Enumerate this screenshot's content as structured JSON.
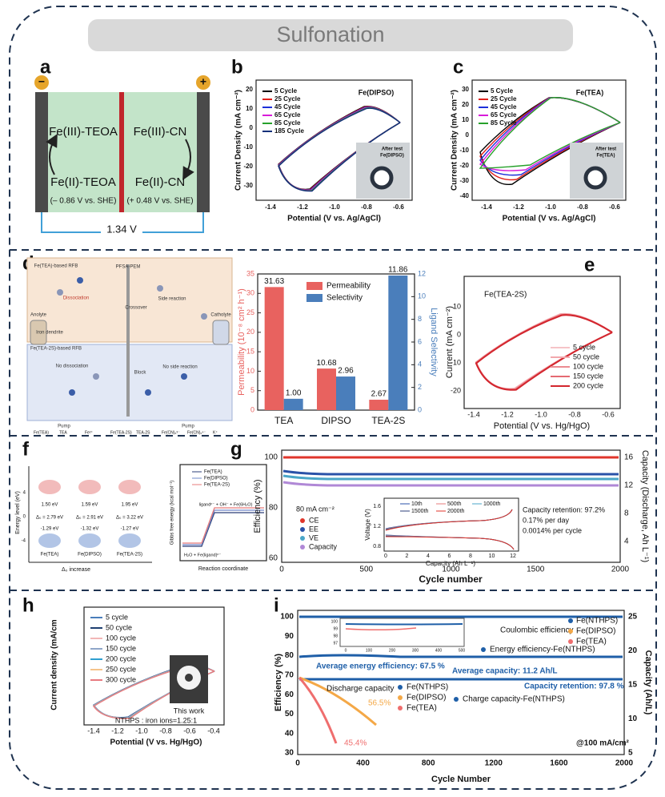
{
  "title": "Sulfonation",
  "panel_labels": [
    "a",
    "b",
    "c",
    "d",
    "e",
    "f",
    "g",
    "h",
    "i"
  ],
  "a": {
    "minus": "−",
    "plus": "+",
    "left_top": "Fe(III)-TEOA",
    "left_bottom": "Fe(II)-TEOA",
    "left_potential": "(– 0.86 V vs. SHE)",
    "right_top": "Fe(III)-CN",
    "right_bottom": "Fe(II)-CN",
    "right_potential": "(+ 0.48 V vs. SHE)",
    "voltage": "1.34 V"
  },
  "b": {
    "ylabel": "Current Density (mA cm⁻²)",
    "xlabel": "Potential (V vs. Ag/AgCl)",
    "tag": "Fe(DIPSO)",
    "legend": [
      "5 Cycle",
      "25 Cycle",
      "45 Cycle",
      "65 Cycle",
      "85 Cycle",
      "185 Cycle"
    ],
    "yticks": [
      "20",
      "10",
      "0",
      "-10",
      "-20",
      "-30"
    ],
    "xticks": [
      "-1.4",
      "-1.2",
      "-1.0",
      "-0.8",
      "-0.6"
    ],
    "inset": [
      "After test",
      "Fe(DIPSO)"
    ]
  },
  "c": {
    "ylabel": "Current Density (mA cm⁻²)",
    "xlabel": "Potential (V vs. Ag/AgCl)",
    "tag": "Fe(TEA)",
    "legend": [
      "5 Cycle",
      "25 Cycle",
      "45 Cycle",
      "65 Cycle",
      "85 Cycle"
    ],
    "yticks": [
      "30",
      "20",
      "10",
      "0",
      "-10",
      "-20",
      "-30",
      "-40"
    ],
    "xticks": [
      "-1.4",
      "-1.2",
      "-1.0",
      "-0.8",
      "-0.6"
    ],
    "inset": [
      "After test",
      "Fe(TEA)"
    ]
  },
  "d": {
    "schematic": [
      "Fe(TEA)-based RFB",
      "PFSA-PEM",
      "Dissociation",
      "Crossover",
      "Side reaction",
      "Iron dendrite",
      "Fe(TEA-2S)-based RFB",
      "No dissociation",
      "Block",
      "No side reaction",
      "Anolyte",
      "Catholyte",
      "Pump",
      "Pump"
    ],
    "species": [
      "Fe(TEA)",
      "TEA",
      "Fe²⁺",
      "Fe(TEA-2S)",
      "TEA-2S",
      "Fe(CN)₆³⁻",
      "Fe(CN)₆⁴⁻",
      "K⁺"
    ]
  },
  "e": {
    "tag": "Fe(TEA-2S)",
    "ylabel": "Current (mA cm⁻²)",
    "xlabel": "Potential (V vs. Hg/HgO)",
    "legend": [
      "5 cycle",
      "50 cycle",
      "100 cycle",
      "150 cycle",
      "200 cycle"
    ],
    "yticks": [
      "10",
      "0",
      "-10",
      "-20"
    ],
    "xticks": [
      "-1.4",
      "-1.2",
      "-1.0",
      "-0.8",
      "-0.6"
    ]
  },
  "f": {
    "ylabel": "Energy level (eV)",
    "xlabel": "Δ₀ increase",
    "yticks": [
      "4",
      "0",
      "-4"
    ],
    "molecules": [
      "Fe(TEA)",
      "Fe(DIPSO)",
      "Fe(TEA-2S)"
    ],
    "upper": [
      "1.50 eV",
      "1.59 eV",
      "1.95 eV"
    ],
    "delta": [
      "Δ₀ = 2.79 eV",
      "Δ₀ = 2.91 eV",
      "Δ₀ = 3.22 eV"
    ],
    "lower": [
      "-1.29 eV",
      "-1.32 eV",
      "-1.27 eV"
    ],
    "right_ylabel": "Gibbs free energy (kcal mol⁻¹)",
    "right_xlabel": "Reaction coordinate",
    "legend": [
      "Fe(TEA)",
      "Fe(DIPSO)",
      "Fe(TEA-2S)"
    ],
    "product": "ligandⁿ⁻ + OH⁻ + Fe(6H₂O)",
    "reactant": "H₂O + Fe(ligand)ⁿ⁻"
  },
  "g": {
    "ylabel": "Efficiency (%)",
    "y2label": "Capacity (Discharge, Ah L⁻¹)",
    "xlabel": "Cycle number",
    "yticks": [
      "100",
      "80",
      "60"
    ],
    "y2ticks": [
      "16",
      "12",
      "8",
      "4"
    ],
    "xticks": [
      "0",
      "500",
      "1000",
      "1500",
      "2000"
    ],
    "current": "80 mA cm⁻²",
    "legend": [
      "CE",
      "EE",
      "VE",
      "Capacity"
    ],
    "retention": [
      "Capacity retention: 97.2%",
      "0.17% per day",
      "0.0014% per cycle"
    ],
    "inset": {
      "ylabel": "Voltage (V)",
      "xlabel": "Capacity (Ah L⁻¹)",
      "yticks": [
        "1.6",
        "1.2",
        "0.8"
      ],
      "xticks": [
        "0",
        "2",
        "4",
        "6",
        "8",
        "10",
        "12"
      ],
      "legend": [
        "10th",
        "500th",
        "1000th",
        "1500th",
        "2000th"
      ]
    }
  },
  "h": {
    "ylabel": "Current density (mA/cm",
    "xlabel": "Potential (V vs. Hg/HgO)",
    "xticks": [
      "-1.4",
      "-1.2",
      "-1.0",
      "-0.8",
      "-0.6",
      "-0.4"
    ],
    "legend": [
      "5 cycle",
      "50 cycle",
      "100 cycle",
      "150 cycle",
      "200 cycle",
      "250 cycle",
      "300 cycle"
    ],
    "note": [
      "This work",
      "NTHPS : iron ions=1.25:1"
    ]
  },
  "i": {
    "ylabel": "Efficiency (%)",
    "y2label": "Capacity (Ah/L)",
    "xlabel": "Cycle Number",
    "yticks": [
      "100",
      "90",
      "80",
      "70",
      "60",
      "50",
      "40",
      "30"
    ],
    "y2ticks": [
      "25",
      "20",
      "15",
      "10",
      "5"
    ],
    "xticks": [
      "0",
      "400",
      "800",
      "1200",
      "1600",
      "2000"
    ],
    "inset_yticks": [
      "100",
      "99",
      "98",
      "97"
    ],
    "inset_xticks": [
      "0",
      "100",
      "200",
      "300",
      "400",
      "500"
    ],
    "ce": "Coulombic efficiency",
    "ce_legend": [
      "Fe(NTHPS)",
      "Fe(DIPSO)",
      "Fe(TEA)"
    ],
    "ee": "Energy efficiency-Fe(NTHPS)",
    "avg_ee": "Average energy efficiency: 67.5 %",
    "avg_cap": "Average capacity: 11.2 Ah/L",
    "retention": "Capacity retention: 97.8 %",
    "dc": "Discharge capacity",
    "dc_legend": [
      "Fe(NTHPS)",
      "Fe(DIPSO)",
      "Fe(TEA)"
    ],
    "cc": "Charge capacity-Fe(NTHPS)",
    "dipso_ret": "56.5%",
    "tea_ret": "45.4%",
    "current": "@100 mA/cm²"
  },
  "chart_data": {
    "type": "bar",
    "categories": [
      "TEA",
      "DIPSO",
      "TEA-2S"
    ],
    "ylabel": "Permeability (10⁻⁸ cm² h⁻¹)",
    "y2label": "Ligand Selectivity",
    "series": [
      {
        "name": "Permeability",
        "color": "#e8625f",
        "values": [
          31.63,
          10.68,
          2.67
        ]
      },
      {
        "name": "Selectivity",
        "color": "#4a7ebb",
        "axis": "y2",
        "values": [
          1,
          2.96,
          11.86
        ],
        "value_labels": [
          "1.00",
          "2.96",
          "11.86"
        ]
      }
    ],
    "ylim": [
      0,
      35
    ],
    "yticks": [
      0,
      5,
      10,
      15,
      20,
      25,
      30,
      35
    ],
    "y2lim": [
      0,
      12
    ],
    "y2ticks": [
      0,
      2,
      4,
      6,
      8,
      10,
      12
    ]
  }
}
